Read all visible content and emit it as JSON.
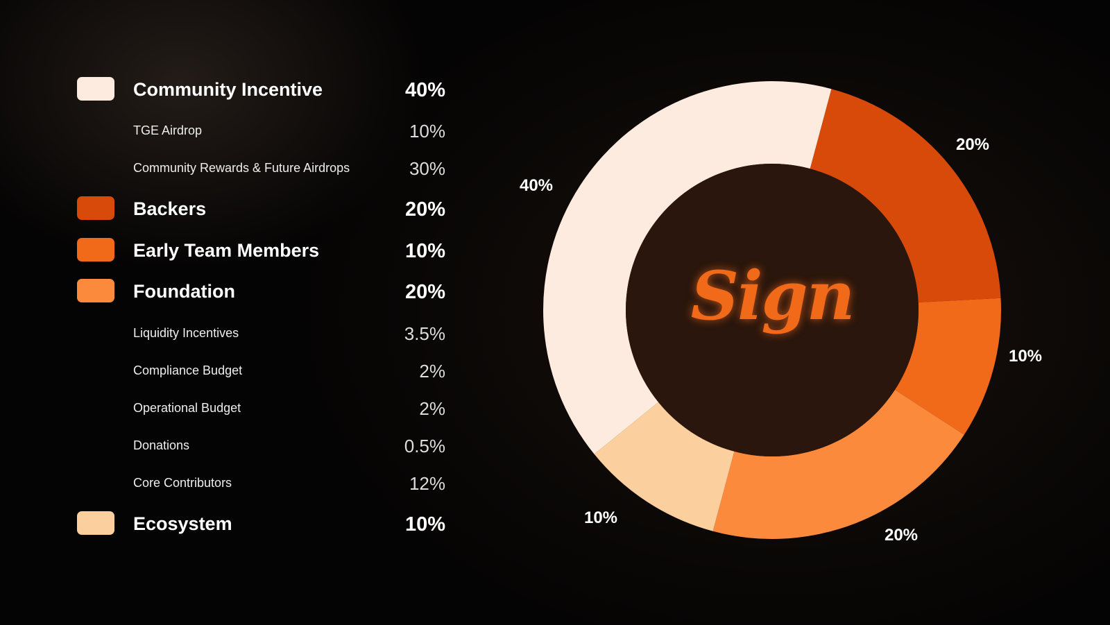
{
  "chart_data": {
    "type": "pie",
    "donut": true,
    "categories": [
      "Backers",
      "Early Team Members",
      "Foundation",
      "Ecosystem",
      "Community Incentive"
    ],
    "values": [
      20,
      10,
      20,
      10,
      40
    ],
    "colors": [
      "#d84a0a",
      "#f06a1a",
      "#fb8a3c",
      "#fcd09e",
      "#fdebe0"
    ],
    "data_labels": [
      "20%",
      "10%",
      "20%",
      "10%",
      "40%"
    ],
    "legend_placement": "left"
  },
  "legend": [
    {
      "label": "Community Incentive",
      "value": "40%",
      "color": "#fdebe0",
      "main": true
    },
    {
      "label": "TGE Airdrop",
      "value": "10%",
      "main": false
    },
    {
      "label": "Community Rewards & Future Airdrops",
      "value": "30%",
      "main": false
    },
    {
      "label": "Backers",
      "value": "20%",
      "color": "#d84a0a",
      "main": true
    },
    {
      "label": "Early Team Members",
      "value": "10%",
      "color": "#f06a1a",
      "main": true
    },
    {
      "label": "Foundation",
      "value": "20%",
      "color": "#fb8a3c",
      "main": true
    },
    {
      "label": "Liquidity Incentives",
      "value": "3.5%",
      "main": false
    },
    {
      "label": "Compliance Budget",
      "value": "2%",
      "main": false
    },
    {
      "label": "Operational Budget",
      "value": "2%",
      "main": false
    },
    {
      "label": "Donations",
      "value": "0.5%",
      "main": false
    },
    {
      "label": "Core Contributors",
      "value": "12%",
      "main": false
    },
    {
      "label": "Ecosystem",
      "value": "10%",
      "color": "#fcd09e",
      "main": true
    }
  ],
  "center_logo": "Sign",
  "center_color": "#2a160c"
}
